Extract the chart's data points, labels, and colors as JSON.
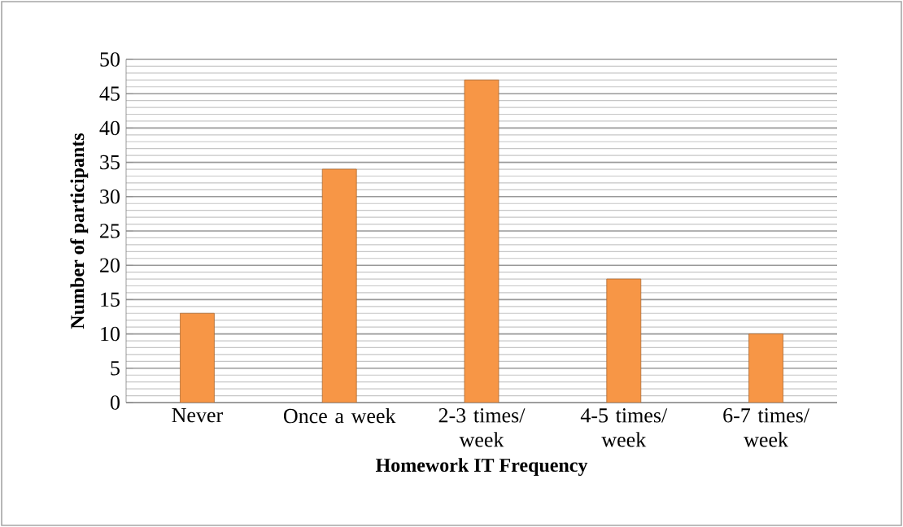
{
  "chart_data": {
    "type": "bar",
    "xlabel": "Homework  IT Frequency",
    "ylabel": "Number of participants",
    "categories": [
      "Never",
      "Once a week",
      "2-3 times/ week",
      "4-5 times/ week",
      "6-7 times/ week"
    ],
    "values": [
      13,
      34,
      47,
      18,
      10
    ],
    "color": "#f79646",
    "ylim": [
      0,
      50
    ],
    "yticks": [
      0,
      5,
      10,
      15,
      20,
      25,
      30,
      35,
      40,
      45,
      50
    ],
    "grid": "y"
  }
}
